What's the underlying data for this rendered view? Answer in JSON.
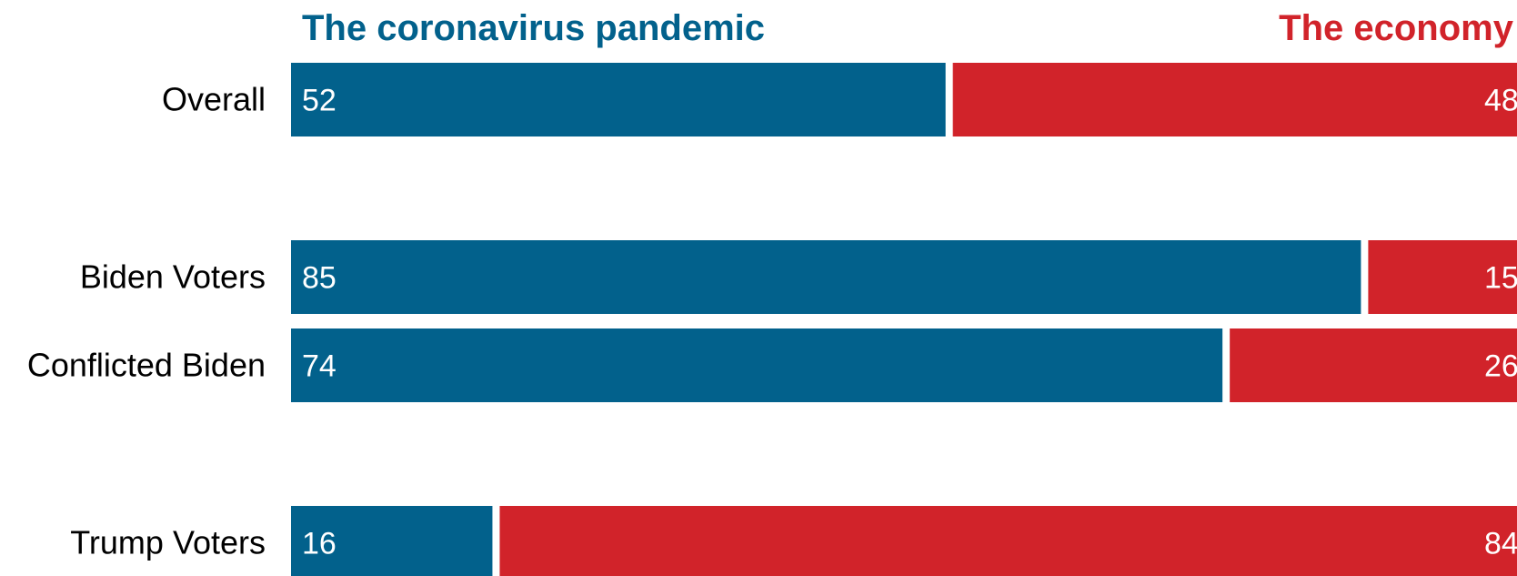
{
  "chart_data": {
    "type": "bar",
    "stacked": true,
    "orientation": "horizontal",
    "categories": [
      "Overall",
      "Biden Voters",
      "Conflicted Biden",
      "Trump Voters"
    ],
    "series": [
      {
        "name": "The coronavirus pandemic",
        "values": [
          52,
          85,
          74,
          16
        ]
      },
      {
        "name": "The economy",
        "values": [
          48,
          15,
          26,
          84
        ]
      }
    ],
    "xlim": [
      0,
      100
    ],
    "legend_position": "top",
    "grid": false
  },
  "colors": {
    "pandemic": "#02618c",
    "economy": "#d1232a"
  }
}
